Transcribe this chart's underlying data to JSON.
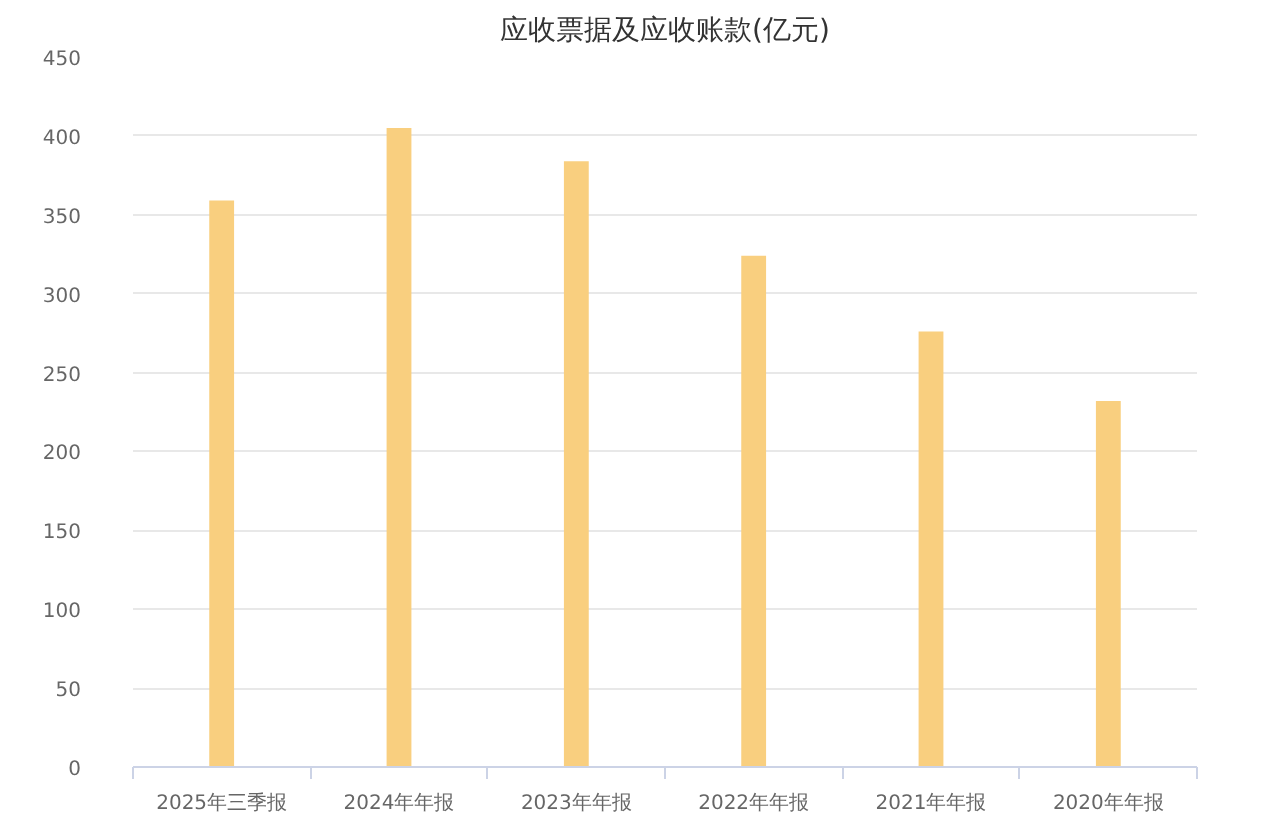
{
  "chart_data": {
    "type": "bar",
    "title": "应收票据及应收账款(亿元)",
    "categories": [
      "2025年三季报",
      "2024年年报",
      "2023年年报",
      "2022年年报",
      "2021年年报",
      "2020年年报"
    ],
    "series": [
      {
        "color": "#f9cf7f",
        "values": [
          359,
          405,
          384,
          324,
          276,
          232
        ]
      }
    ],
    "ylim": [
      0,
      450
    ],
    "yticks": [
      0,
      50,
      100,
      150,
      200,
      250,
      300,
      350,
      400,
      450
    ],
    "grid": "y"
  }
}
